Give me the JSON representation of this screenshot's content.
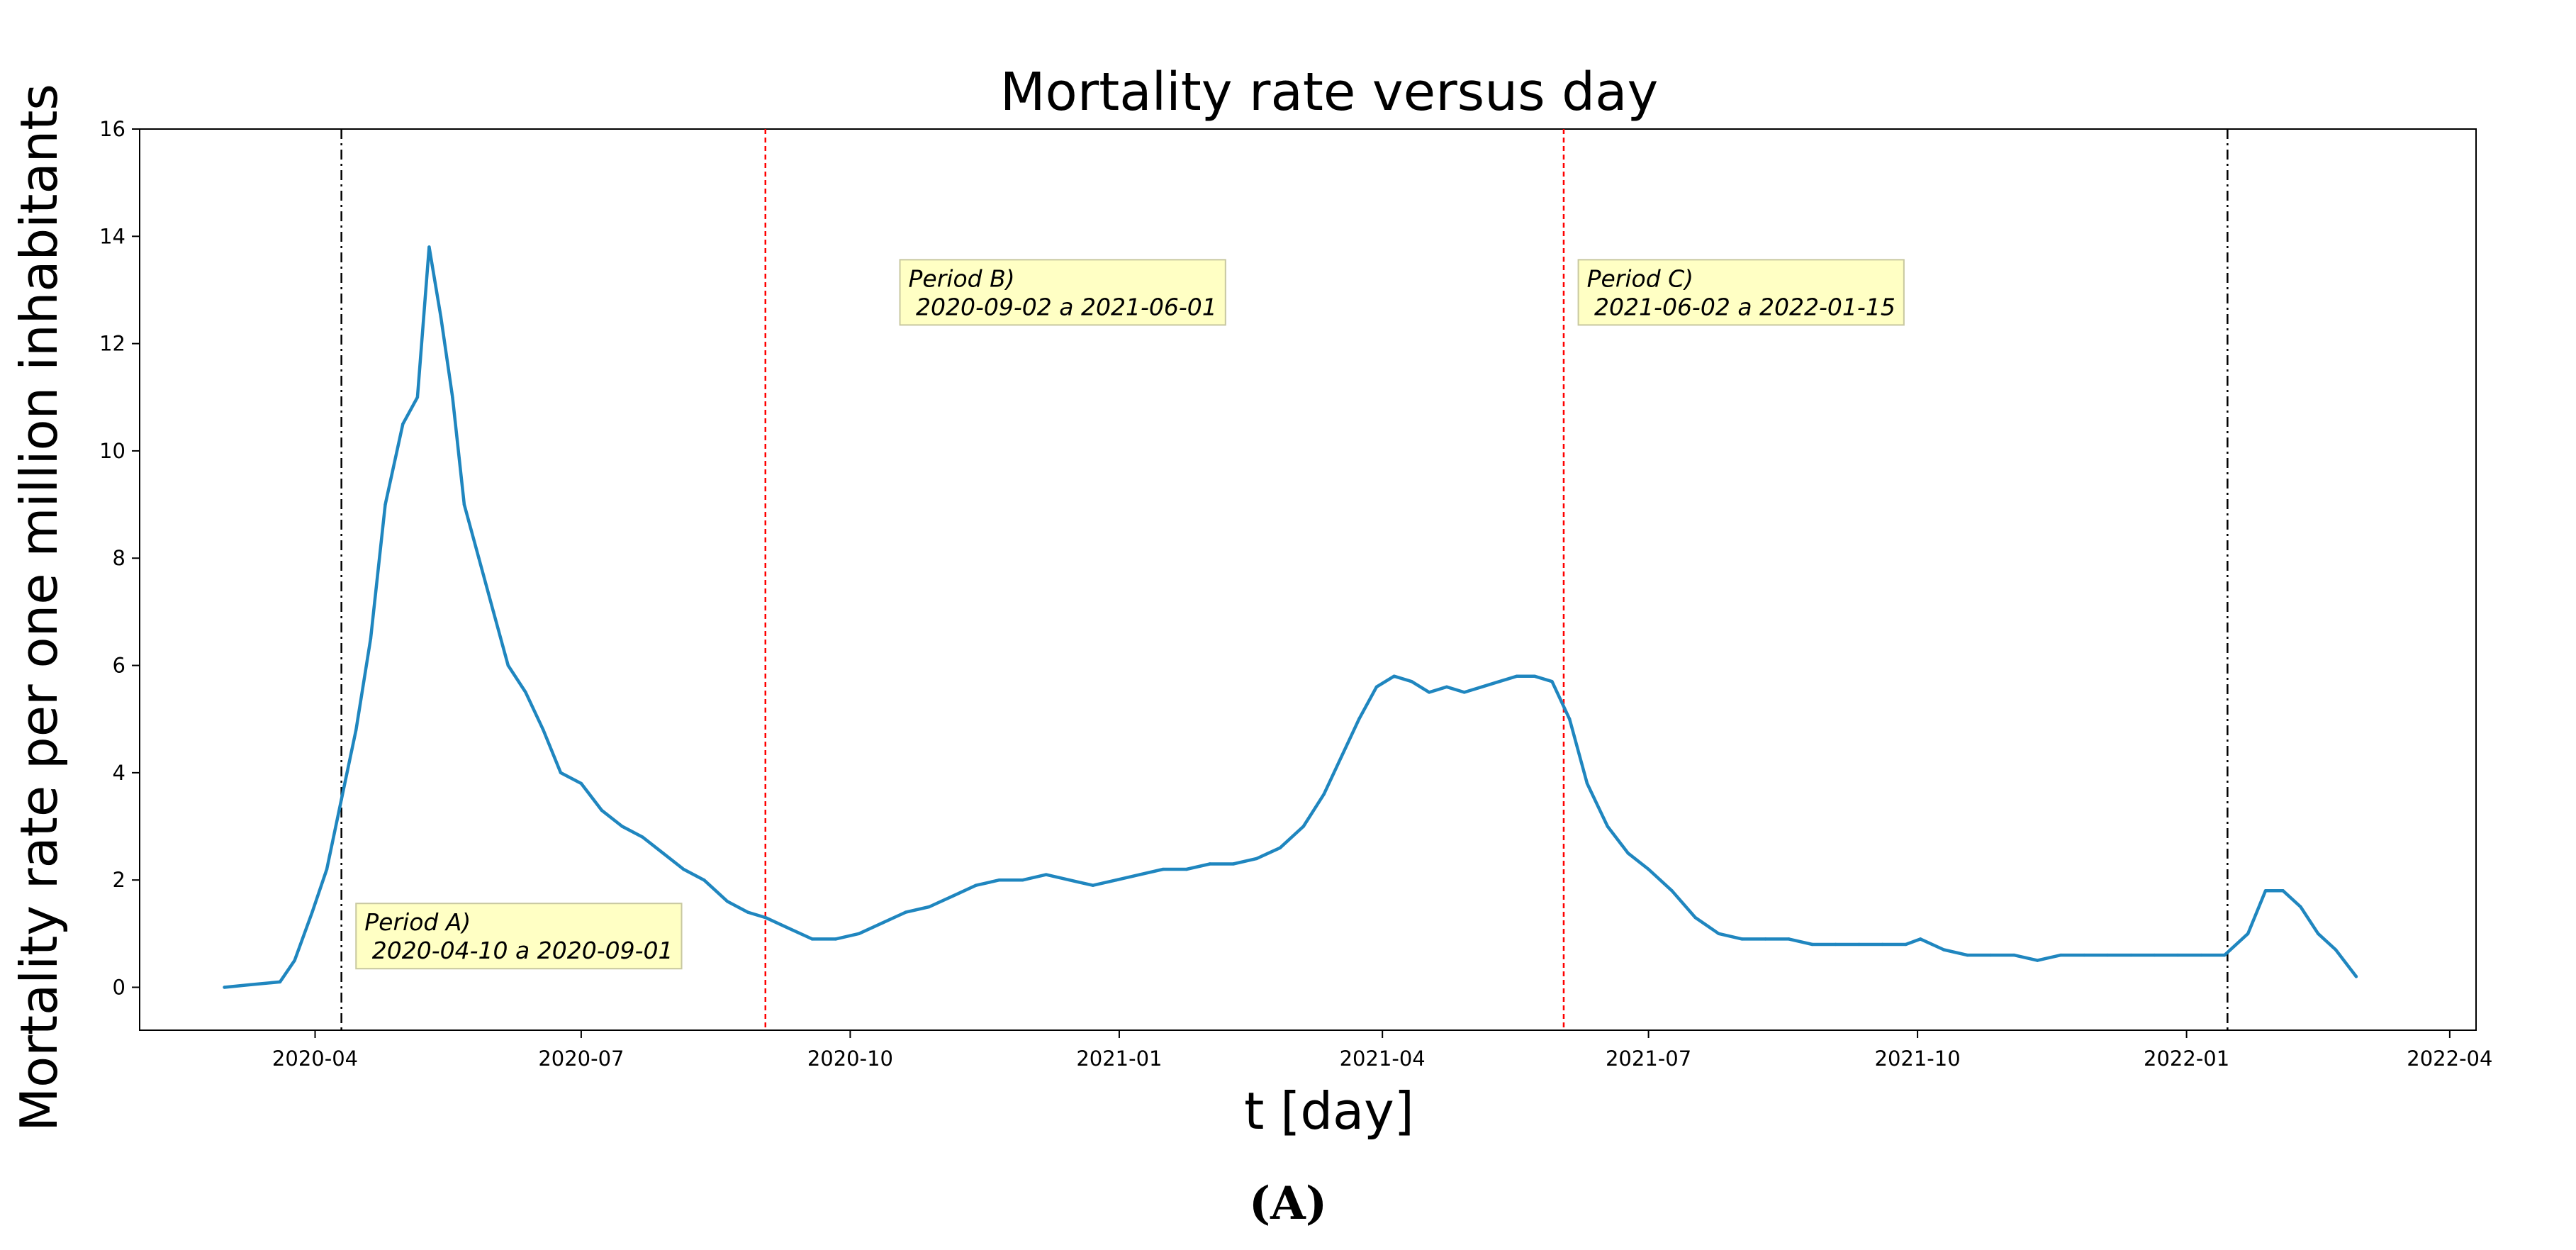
{
  "chart_data": {
    "type": "line",
    "title": "Mortality rate versus day",
    "xlabel": "t [day]",
    "ylabel": "Mortality rate per one million inhabitants",
    "xlim": [
      "2020-02-01",
      "2022-04-10"
    ],
    "ylim": [
      -0.8,
      16
    ],
    "x_ticks": [
      "2020-04",
      "2020-07",
      "2020-10",
      "2021-01",
      "2021-04",
      "2021-07",
      "2021-10",
      "2022-01",
      "2022-04"
    ],
    "y_ticks": [
      0,
      2,
      4,
      6,
      8,
      10,
      12,
      14,
      16
    ],
    "grid": false,
    "series": [
      {
        "color": "#1f86bf",
        "x": [
          "2020-03-01",
          "2020-03-10",
          "2020-03-20",
          "2020-03-25",
          "2020-03-31",
          "2020-04-05",
          "2020-04-10",
          "2020-04-15",
          "2020-04-20",
          "2020-04-25",
          "2020-05-01",
          "2020-05-06",
          "2020-05-10",
          "2020-05-14",
          "2020-05-18",
          "2020-05-22",
          "2020-05-27",
          "2020-06-01",
          "2020-06-06",
          "2020-06-12",
          "2020-06-18",
          "2020-06-24",
          "2020-07-01",
          "2020-07-08",
          "2020-07-15",
          "2020-07-22",
          "2020-07-29",
          "2020-08-05",
          "2020-08-12",
          "2020-08-20",
          "2020-08-27",
          "2020-09-02",
          "2020-09-10",
          "2020-09-18",
          "2020-09-26",
          "2020-10-04",
          "2020-10-12",
          "2020-10-20",
          "2020-10-28",
          "2020-11-05",
          "2020-11-13",
          "2020-11-21",
          "2020-11-29",
          "2020-12-07",
          "2020-12-15",
          "2020-12-23",
          "2020-12-31",
          "2021-01-08",
          "2021-01-16",
          "2021-01-24",
          "2021-02-01",
          "2021-02-09",
          "2021-02-17",
          "2021-02-25",
          "2021-03-05",
          "2021-03-12",
          "2021-03-18",
          "2021-03-24",
          "2021-03-30",
          "2021-04-05",
          "2021-04-11",
          "2021-04-17",
          "2021-04-23",
          "2021-04-29",
          "2021-05-05",
          "2021-05-11",
          "2021-05-17",
          "2021-05-23",
          "2021-05-29",
          "2021-06-04",
          "2021-06-10",
          "2021-06-17",
          "2021-06-24",
          "2021-07-01",
          "2021-07-09",
          "2021-07-17",
          "2021-07-25",
          "2021-08-02",
          "2021-08-10",
          "2021-08-18",
          "2021-08-26",
          "2021-09-03",
          "2021-09-11",
          "2021-09-19",
          "2021-09-27",
          "2021-10-02",
          "2021-10-10",
          "2021-10-18",
          "2021-10-26",
          "2021-11-03",
          "2021-11-11",
          "2021-11-19",
          "2021-11-27",
          "2021-12-05",
          "2021-12-13",
          "2021-12-21",
          "2021-12-29",
          "2022-01-06",
          "2022-01-14",
          "2022-01-22",
          "2022-01-28",
          "2022-02-03",
          "2022-02-09",
          "2022-02-15",
          "2022-02-21",
          "2022-02-28"
        ],
        "values": [
          0.0,
          0.05,
          0.1,
          0.5,
          1.4,
          2.2,
          3.5,
          4.8,
          6.5,
          9.0,
          10.5,
          11.0,
          13.8,
          12.5,
          11.0,
          9.0,
          8.0,
          7.0,
          6.0,
          5.5,
          4.8,
          4.0,
          3.8,
          3.3,
          3.0,
          2.8,
          2.5,
          2.2,
          2.0,
          1.6,
          1.4,
          1.3,
          1.1,
          0.9,
          0.9,
          1.0,
          1.2,
          1.4,
          1.5,
          1.7,
          1.9,
          2.0,
          2.0,
          2.1,
          2.0,
          1.9,
          2.0,
          2.1,
          2.2,
          2.2,
          2.3,
          2.3,
          2.4,
          2.6,
          3.0,
          3.6,
          4.3,
          5.0,
          5.6,
          5.8,
          5.7,
          5.5,
          5.6,
          5.5,
          5.6,
          5.7,
          5.8,
          5.8,
          5.7,
          5.0,
          3.8,
          3.0,
          2.5,
          2.2,
          1.8,
          1.3,
          1.0,
          0.9,
          0.9,
          0.9,
          0.8,
          0.8,
          0.8,
          0.8,
          0.8,
          0.9,
          0.7,
          0.6,
          0.6,
          0.6,
          0.5,
          0.6,
          0.6,
          0.6,
          0.6,
          0.6,
          0.6,
          0.6,
          0.6,
          1.0,
          1.8,
          1.8,
          1.5,
          1.0,
          0.7,
          0.2
        ]
      }
    ],
    "vertical_lines": [
      {
        "x": "2020-04-10",
        "style": "dashdot",
        "color": "#000000"
      },
      {
        "x": "2020-09-02",
        "style": "dashed",
        "color": "#ff0000"
      },
      {
        "x": "2021-06-02",
        "style": "dashed",
        "color": "#ff0000"
      },
      {
        "x": "2022-01-15",
        "style": "dashdot",
        "color": "#000000"
      }
    ],
    "annotations": [
      {
        "line1": "Period A)",
        "line2": " 2020-04-10 a 2020-09-01",
        "x": "2020-04-15",
        "y": 0.4
      },
      {
        "line1": "Period B)",
        "line2": " 2020-09-02 a 2021-06-01",
        "x": "2020-10-18",
        "y": 12.4
      },
      {
        "line1": "Period C)",
        "line2": " 2021-06-02 a 2022-01-15",
        "x": "2021-06-07",
        "y": 12.4
      }
    ],
    "annotation_box_color": "#ffffc4"
  },
  "panel_label": "(A)"
}
